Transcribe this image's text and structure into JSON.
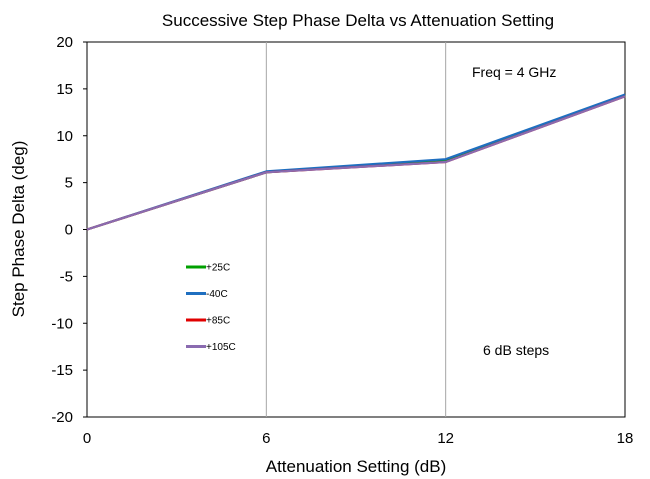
{
  "chart_data": {
    "type": "line",
    "title": "Successive Step Phase Delta vs Attenuation Setting",
    "xlabel": "Attenuation Setting (dB)",
    "ylabel": "Step Phase Delta (deg)",
    "xlim": [
      0,
      18
    ],
    "ylim": [
      -20,
      20
    ],
    "x_ticks": [
      "0",
      "6",
      "12",
      "18"
    ],
    "y_ticks": [
      "20",
      "15",
      "10",
      "5",
      "0",
      "-5",
      "-10",
      "-15",
      "-20"
    ],
    "grid": "vertical",
    "x": [
      0,
      6,
      12,
      18
    ],
    "series": [
      {
        "name": "+25C",
        "color": "#00a000",
        "values": [
          0,
          6.1,
          7.3,
          14.3
        ]
      },
      {
        "name": "-40C",
        "color": "#1f6fc0",
        "values": [
          0,
          6.2,
          7.5,
          14.4
        ]
      },
      {
        "name": "+85C",
        "color": "#e00000",
        "values": [
          0,
          6.1,
          7.2,
          14.2
        ]
      },
      {
        "name": "+105C",
        "color": "#8a6bb0",
        "values": [
          0,
          6.1,
          7.2,
          14.2
        ]
      }
    ],
    "annotations": [
      "Freq = 4 GHz",
      "6 dB steps"
    ],
    "legend_position": "lower-left"
  }
}
